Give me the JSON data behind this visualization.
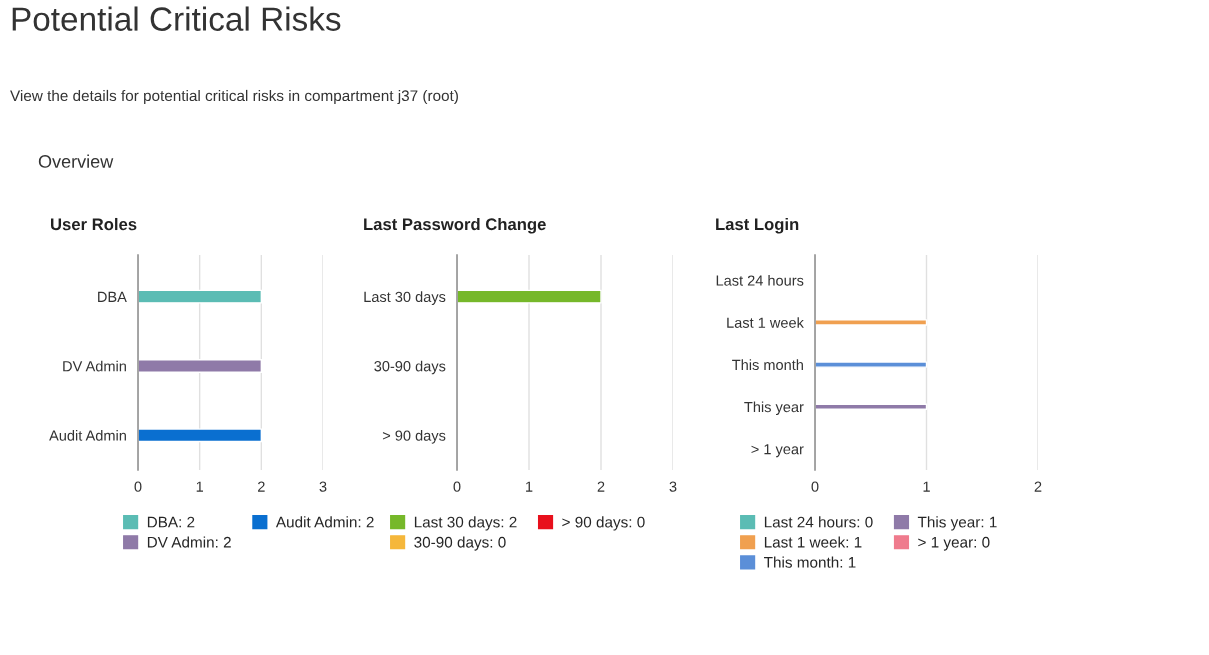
{
  "chart_data": [
    {
      "type": "bar",
      "orientation": "horizontal",
      "title": "User Roles",
      "annotations": [
        "Potential Critical Risks",
        "View the details for potential critical risks in compartment j37 (root)",
        "Overview"
      ],
      "categories": [
        "DBA",
        "DV Admin",
        "Audit Admin"
      ],
      "series": [
        {
          "name": "DBA: 2",
          "color": "#5bbcb4",
          "values": [
            2,
            null,
            null
          ]
        },
        {
          "name": "DV Admin: 2",
          "color": "#8f7aa8",
          "values": [
            null,
            2,
            null
          ]
        },
        {
          "name": "Audit Admin: 2",
          "color": "#0a6fd0",
          "values": [
            null,
            null,
            2
          ]
        }
      ],
      "xlim": [
        0,
        3
      ],
      "xticks": [
        0,
        1,
        2,
        3
      ],
      "grid": "x",
      "legend": "bottom"
    },
    {
      "type": "bar",
      "orientation": "horizontal",
      "title": "Last Password Change",
      "categories": [
        "Last 30 days",
        "30-90 days",
        "> 90 days"
      ],
      "series": [
        {
          "name": "Last 30 days: 2",
          "color": "#76b82a",
          "values": [
            2,
            null,
            null
          ]
        },
        {
          "name": "30-90 days: 0",
          "color": "#f5b73b",
          "values": [
            null,
            0,
            null
          ]
        },
        {
          "name": "> 90 days: 0",
          "color": "#e8101c",
          "values": [
            null,
            null,
            0
          ]
        }
      ],
      "xlim": [
        0,
        3
      ],
      "xticks": [
        0,
        1,
        2,
        3
      ],
      "grid": "x",
      "legend": "bottom"
    },
    {
      "type": "bar",
      "orientation": "horizontal",
      "title": "Last Login",
      "categories": [
        "Last 24 hours",
        "Last 1 week",
        "This month",
        "This year",
        "> 1 year"
      ],
      "series": [
        {
          "name": "Last 24 hours: 0",
          "color": "#5bbcb4",
          "values": [
            0,
            null,
            null,
            null,
            null
          ]
        },
        {
          "name": "Last 1 week: 1",
          "color": "#f0a050",
          "values": [
            null,
            1,
            null,
            null,
            null
          ]
        },
        {
          "name": "This month: 1",
          "color": "#5b8fd8",
          "values": [
            null,
            null,
            1,
            null,
            null
          ]
        },
        {
          "name": "This year: 1",
          "color": "#8f7aa8",
          "values": [
            null,
            null,
            null,
            1,
            null
          ]
        },
        {
          "name": "> 1 year: 0",
          "color": "#ef7b8d",
          "values": [
            null,
            null,
            null,
            null,
            0
          ]
        }
      ],
      "xlim": [
        0,
        2
      ],
      "xticks": [
        0,
        1,
        2
      ],
      "grid": "x",
      "legend": "bottom"
    }
  ]
}
